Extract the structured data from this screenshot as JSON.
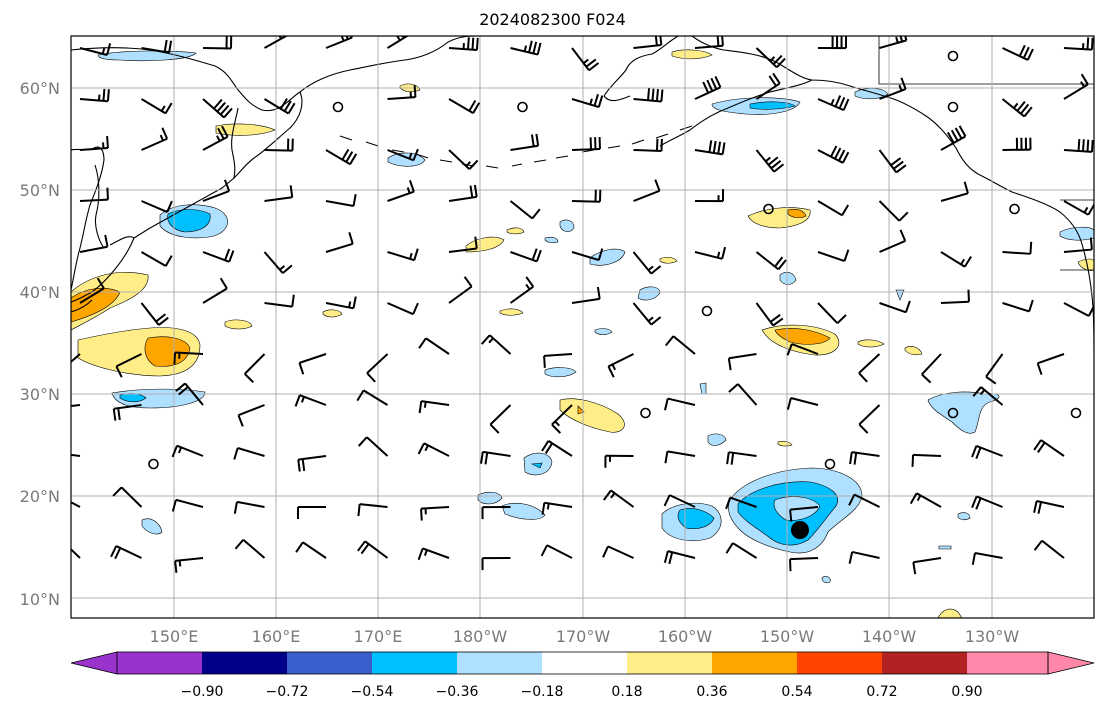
{
  "title": "2024082300 F024",
  "lon_labels": [
    "150°E",
    "160°E",
    "170°E",
    "180°W",
    "170°W",
    "160°W",
    "150°W",
    "140°W",
    "130°W"
  ],
  "lat_labels": [
    "10°N",
    "20°N",
    "30°N",
    "40°N",
    "50°N",
    "60°N"
  ],
  "colorbar": {
    "ticks": [
      "−0.90",
      "−0.72",
      "−0.54",
      "−0.36",
      "−0.18",
      "0.18",
      "0.36",
      "0.54",
      "0.72",
      "0.90"
    ],
    "colors": {
      "under": "#9933cc",
      "bins": [
        "#9933cc",
        "#00008b",
        "#3a5fcd",
        "#00bfff",
        "#b0e0ff",
        "#ffffff",
        "#ffee88",
        "#ffa500",
        "#ff4500",
        "#b22222",
        "#ff88aa"
      ],
      "over": "#ff88aa"
    }
  },
  "colors": {
    "grid": "#b0b0b0",
    "coast": "#000000",
    "barb": "#000000",
    "neg_light": "#b0e0ff",
    "neg_mid": "#00bfff",
    "pos_light": "#ffee88",
    "pos_mid": "#ffa500"
  }
}
